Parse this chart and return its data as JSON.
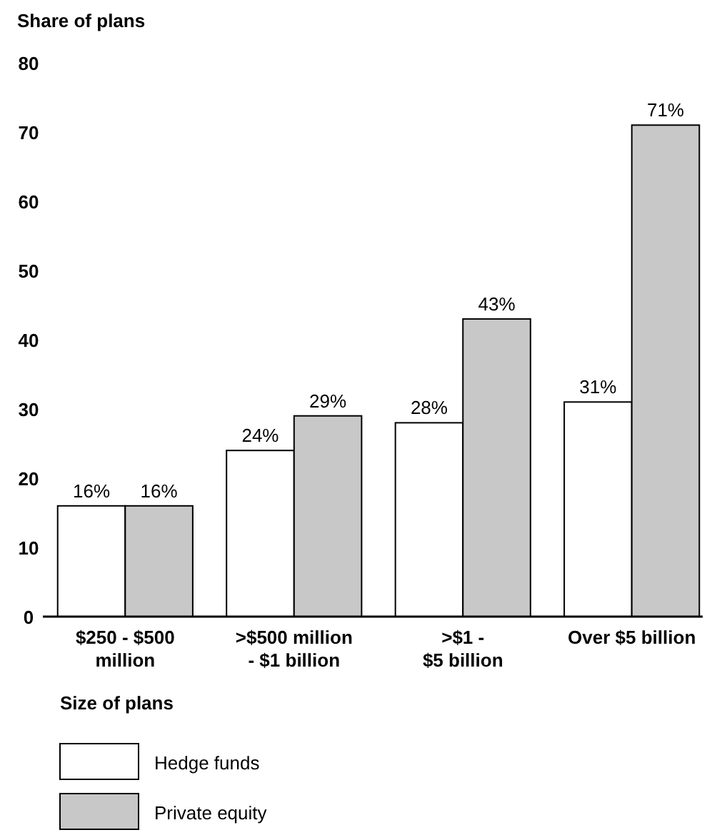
{
  "chart_data": {
    "type": "bar",
    "ylabel": "Share of plans",
    "xlabel": "Size of plans",
    "categories": [
      "$250 - $500\nmillion",
      ">$500 million\n- $1 billion",
      ">$1 -\n$5 billion",
      "Over $5 billion"
    ],
    "series": [
      {
        "name": "Hedge funds",
        "color": "#ffffff",
        "values": [
          16,
          24,
          28,
          31
        ],
        "value_labels": [
          "16%",
          "24%",
          "28%",
          "31%"
        ]
      },
      {
        "name": "Private equity",
        "color": "#c8c8c8",
        "values": [
          16,
          29,
          43,
          71
        ],
        "value_labels": [
          "16%",
          "29%",
          "43%",
          "71%"
        ]
      }
    ],
    "ylim": [
      0,
      80
    ],
    "yticks": [
      0,
      10,
      20,
      30,
      40,
      50,
      60,
      70,
      80
    ],
    "grid": false,
    "legend": "bottom"
  }
}
